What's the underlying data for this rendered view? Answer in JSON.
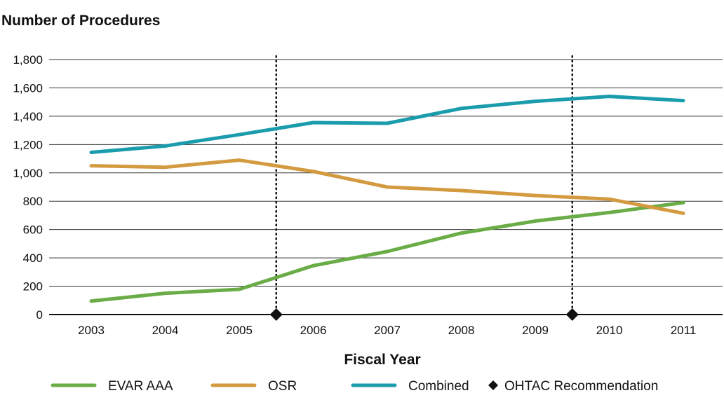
{
  "chart_data": {
    "type": "line",
    "title": "Number of Procedures",
    "xlabel": "Fiscal Year",
    "ylabel": "",
    "categories": [
      "2003",
      "2004",
      "2005",
      "2006",
      "2007",
      "2008",
      "2009",
      "2010",
      "2011"
    ],
    "y_ticks": [
      "0",
      "200",
      "400",
      "600",
      "800",
      "1,000",
      "1,200",
      "1,400",
      "1,600",
      "1,800"
    ],
    "ylim": [
      0,
      1800
    ],
    "grid": true,
    "legend_position": "bottom",
    "series": [
      {
        "name": "EVAR AAA",
        "color": "#6aac46",
        "values": [
          95,
          150,
          178,
          345,
          445,
          575,
          660,
          720,
          790
        ]
      },
      {
        "name": "OSR",
        "color": "#d39a3f",
        "values": [
          1050,
          1040,
          1090,
          1010,
          900,
          875,
          840,
          815,
          715
        ]
      },
      {
        "name": "Combined",
        "color": "#1a9cad",
        "values": [
          1145,
          1190,
          1270,
          1355,
          1350,
          1455,
          1505,
          1540,
          1510
        ]
      }
    ],
    "markers": {
      "name": "OHTAC Recommendation",
      "color": "#111111",
      "x": [
        "2005.5",
        "2009.5"
      ],
      "y": [
        0,
        0
      ]
    }
  }
}
